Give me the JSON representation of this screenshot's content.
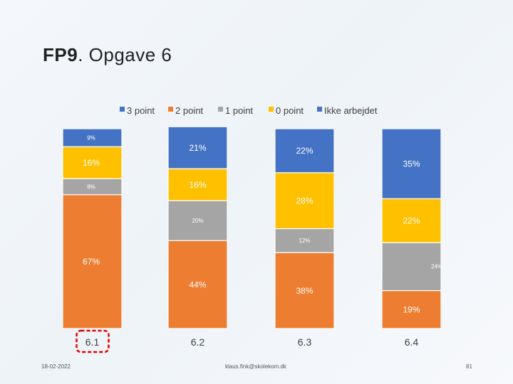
{
  "slide": {
    "title_bold": "FP9",
    "title_rest": ". Opgave 6",
    "date": "18-02-2022",
    "email": "klaus.fink@skolekom.dk",
    "page_number": "81"
  },
  "colors": {
    "3 point": "#4472c4",
    "2 point": "#ed7d31",
    "1 point": "#a5a5a5",
    "0 point": "#ffc000",
    "Ikke arbejdet": "#4472c4"
  },
  "chart_data": {
    "type": "bar",
    "stacked": true,
    "percent": true,
    "categories": [
      "6.1",
      "6.2",
      "6.3",
      "6.4"
    ],
    "highlighted_category": "6.1",
    "legend_position": "top",
    "grid": false,
    "ylim": [
      0,
      100
    ],
    "series": [
      {
        "name": "3 point",
        "color": "#4472c4",
        "values": [
          0,
          0,
          0,
          0
        ],
        "labels": [
          "",
          "",
          "",
          ""
        ]
      },
      {
        "name": "2 point",
        "color": "#ed7d31",
        "values": [
          67,
          44,
          38,
          19
        ],
        "labels": [
          "67%",
          "44%",
          "38%",
          "19%"
        ]
      },
      {
        "name": "1 point",
        "color": "#a5a5a5",
        "values": [
          8,
          20,
          12,
          24
        ],
        "labels": [
          "8%",
          "20%",
          "12%",
          "24%"
        ]
      },
      {
        "name": "0 point",
        "color": "#ffc000",
        "values": [
          16,
          16,
          28,
          22
        ],
        "labels": [
          "16%",
          "16%",
          "28%",
          "22%"
        ]
      },
      {
        "name": "Ikke arbejdet",
        "color": "#4472c4",
        "values": [
          9,
          21,
          22,
          35
        ],
        "labels": [
          "9%",
          "21%",
          "22%",
          "35%"
        ]
      }
    ]
  }
}
